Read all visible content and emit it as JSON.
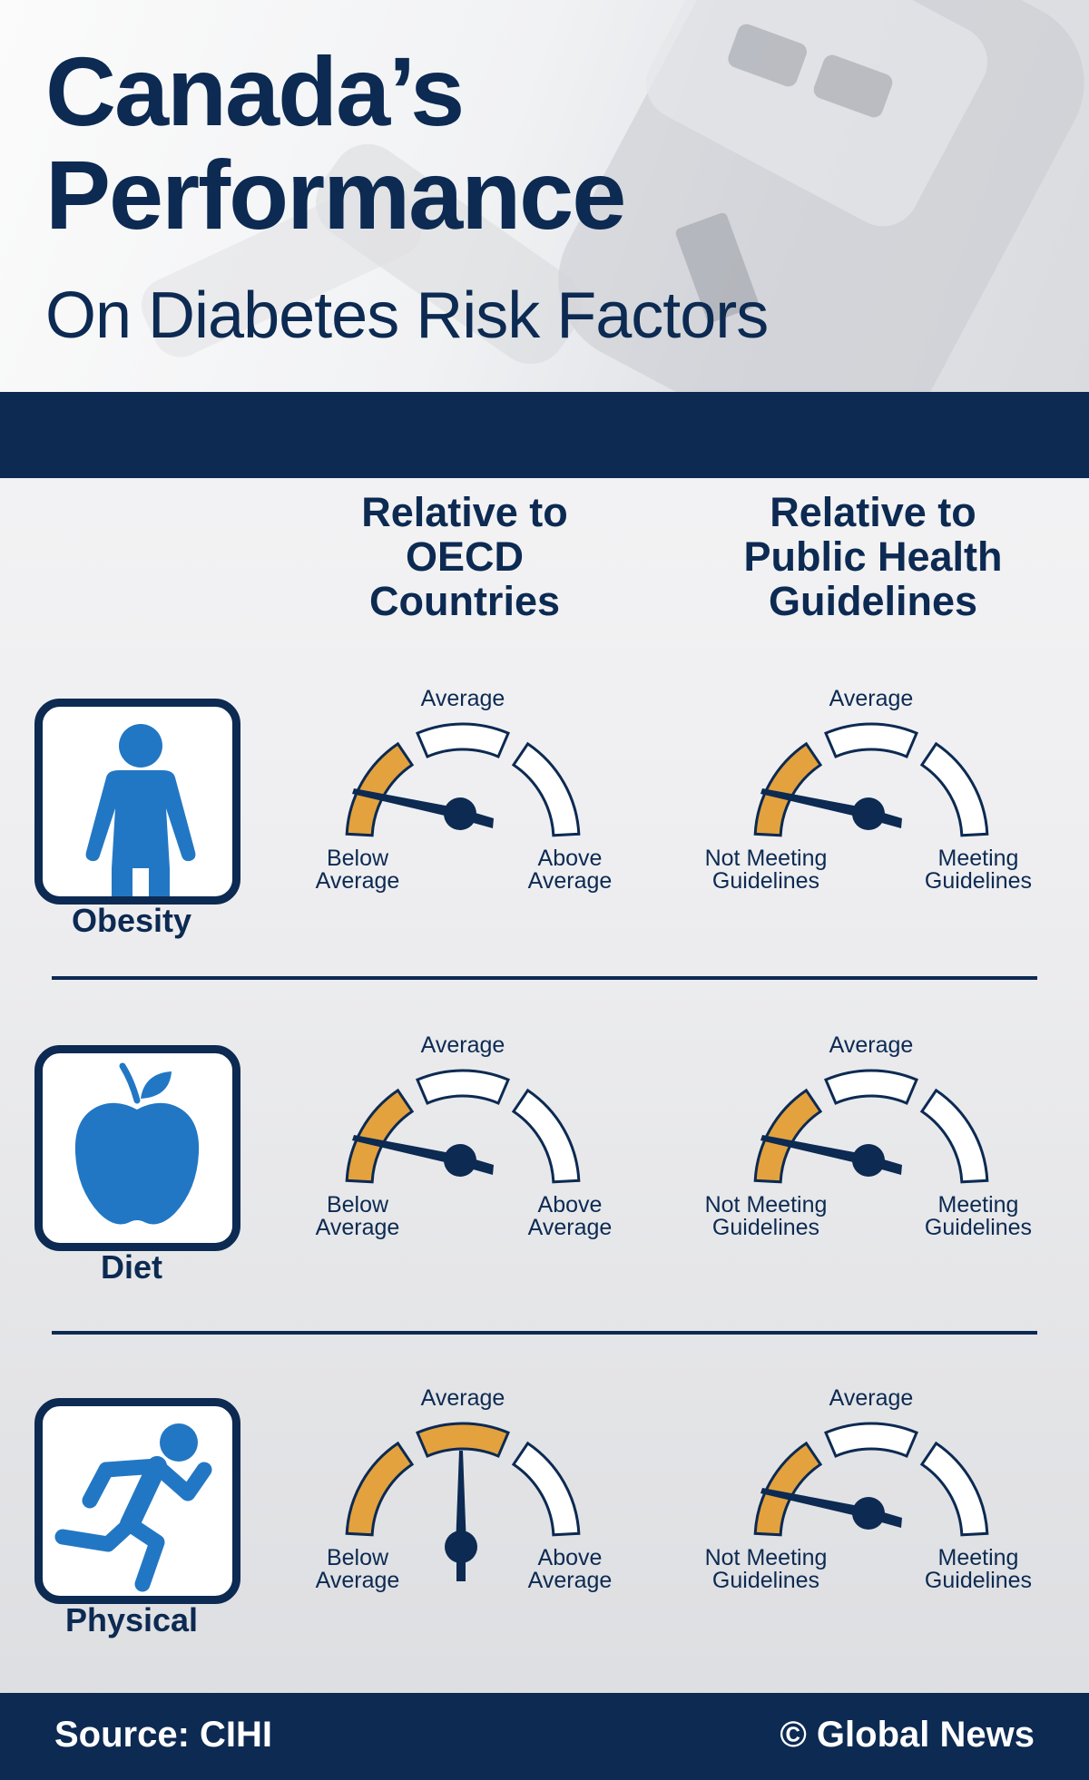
{
  "header": {
    "title_line1": "Canada’s",
    "title_line2": "Performance",
    "subtitle": "On Diabetes Risk Factors"
  },
  "columns": {
    "oecd": [
      "Relative to",
      "OECD",
      "Countries"
    ],
    "guidelines": [
      "Relative to",
      "Public Health",
      "Guidelines"
    ]
  },
  "gauge_labels": {
    "oecd": {
      "top": "Average",
      "left": [
        "Below",
        "Average"
      ],
      "right": [
        "Above",
        "Average"
      ]
    },
    "guidelines": {
      "top": "Average",
      "left": [
        "Not Meeting",
        "Guidelines"
      ],
      "right": [
        "Meeting",
        "Guidelines"
      ]
    }
  },
  "rows": [
    {
      "label": "Obesity",
      "icon": "person-icon",
      "oecd_level": "below",
      "guidelines_level": "not-meeting"
    },
    {
      "label": "Diet",
      "icon": "apple-icon",
      "oecd_level": "below",
      "guidelines_level": "not-meeting"
    },
    {
      "label": "Physical",
      "icon": "running-person-icon",
      "oecd_level": "average",
      "guidelines_level": "not-meeting"
    }
  ],
  "colors": {
    "navy": "#0c2a52",
    "highlight": "#e3a23e",
    "icon_blue": "#2277c4",
    "background": "#efeff1"
  },
  "footer": {
    "source": "Source:  CIHI",
    "credit": "© Global News"
  }
}
